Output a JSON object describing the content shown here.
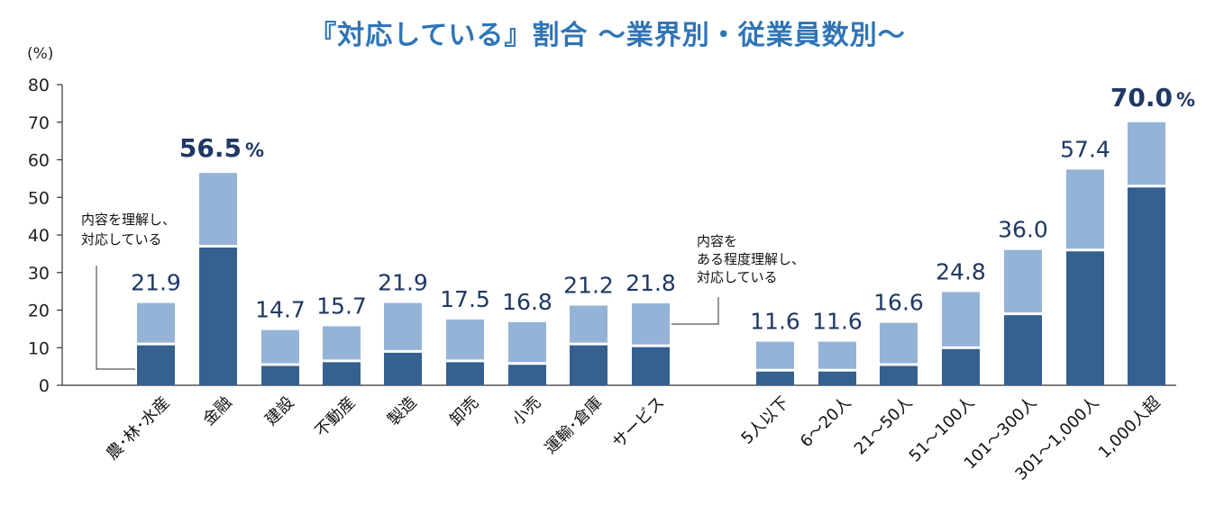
{
  "title": "『対応している』割合 ～業界別・従業員数別～",
  "unit": "(%)",
  "chart_data": {
    "type": "bar",
    "stacked": true,
    "ylim": [
      0,
      80
    ],
    "yticks": [
      0,
      10,
      20,
      30,
      40,
      50,
      60,
      70,
      80
    ],
    "grid": false,
    "colors": {
      "understand": "#35608f",
      "partial": "#95b3d7",
      "text": "#1f3864"
    },
    "groups": [
      {
        "categories": [
          "農･林･水産",
          "金融",
          "建設",
          "不動産",
          "製造",
          "卸売",
          "小売",
          "運輸･倉庫",
          "サービス"
        ],
        "totals": [
          21.9,
          56.5,
          14.7,
          15.7,
          21.9,
          17.5,
          16.8,
          21.2,
          21.8
        ],
        "total_labels": [
          "21.9",
          "56.5",
          "14.7",
          "15.7",
          "21.9",
          "17.5",
          "16.8",
          "21.2",
          "21.8"
        ],
        "series": [
          {
            "name": "内容を理解し、対応している",
            "values": [
              11.0,
              37.0,
              5.5,
              6.5,
              9.0,
              6.5,
              5.8,
              11.0,
              10.5
            ]
          },
          {
            "name": "内容をある程度理解し、対応している",
            "values": [
              10.9,
              19.5,
              9.2,
              9.2,
              12.9,
              11.0,
              11.0,
              10.2,
              11.3
            ]
          }
        ]
      },
      {
        "categories": [
          "5人以下",
          "6～20人",
          "21～50人",
          "51～100人",
          "101～300人",
          "301～1,000人",
          "1,000人超"
        ],
        "totals": [
          11.6,
          11.6,
          16.6,
          24.8,
          36.0,
          57.4,
          70.0
        ],
        "total_labels": [
          "11.6",
          "11.6",
          "16.6",
          "24.8",
          "36.0",
          "57.4",
          "70.0"
        ],
        "series": [
          {
            "name": "内容を理解し、対応している",
            "values": [
              4.0,
              4.0,
              5.5,
              10.0,
              19.0,
              36.0,
              53.0
            ]
          },
          {
            "name": "内容をある程度理解し、対応している",
            "values": [
              7.6,
              7.6,
              11.1,
              14.8,
              17.0,
              21.4,
              17.0
            ]
          }
        ]
      }
    ],
    "highlights": [
      {
        "group": 0,
        "index": 1,
        "suffix": "%"
      },
      {
        "group": 1,
        "index": 6,
        "suffix": "%"
      }
    ],
    "annotations": [
      {
        "lines": [
          "内容を理解し、",
          "対応している"
        ]
      },
      {
        "lines": [
          "内容を",
          "ある程度理解し、",
          "対応している"
        ]
      }
    ]
  }
}
